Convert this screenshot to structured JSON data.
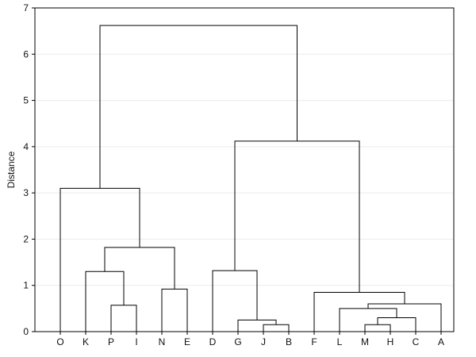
{
  "chart_data": {
    "type": "dendrogram",
    "ylabel": "Distance",
    "ylim": [
      0,
      7
    ],
    "yticks": [
      0,
      1,
      2,
      3,
      4,
      5,
      6,
      7
    ],
    "grid": true,
    "leaves": [
      "O",
      "K",
      "P",
      "I",
      "N",
      "E",
      "D",
      "G",
      "J",
      "B",
      "F",
      "L",
      "M",
      "H",
      "C",
      "A"
    ],
    "links": [
      {
        "left": [
          "leaf",
          12
        ],
        "right": [
          "leaf",
          13
        ],
        "height": 0.15
      },
      {
        "left": [
          "leaf",
          8
        ],
        "right": [
          "leaf",
          9
        ],
        "height": 0.15
      },
      {
        "left": [
          "link",
          0
        ],
        "right": [
          "leaf",
          14
        ],
        "height": 0.3
      },
      {
        "left": [
          "leaf",
          7
        ],
        "right": [
          "link",
          1
        ],
        "height": 0.25
      },
      {
        "left": [
          "leaf",
          11
        ],
        "right": [
          "link",
          2
        ],
        "height": 0.5
      },
      {
        "left": [
          "link",
          4
        ],
        "right": [
          "leaf",
          15
        ],
        "height": 0.6
      },
      {
        "left": [
          "leaf",
          2
        ],
        "right": [
          "leaf",
          3
        ],
        "height": 0.57
      },
      {
        "left": [
          "leaf",
          10
        ],
        "right": [
          "link",
          5
        ],
        "height": 0.85
      },
      {
        "left": [
          "leaf",
          4
        ],
        "right": [
          "leaf",
          5
        ],
        "height": 0.92
      },
      {
        "left": [
          "leaf",
          1
        ],
        "right": [
          "link",
          6
        ],
        "height": 1.3
      },
      {
        "left": [
          "leaf",
          6
        ],
        "right": [
          "link",
          3
        ],
        "height": 1.32
      },
      {
        "left": [
          "link",
          9
        ],
        "right": [
          "link",
          8
        ],
        "height": 1.82
      },
      {
        "left": [
          "leaf",
          0
        ],
        "right": [
          "link",
          11
        ],
        "height": 3.1
      },
      {
        "left": [
          "link",
          10
        ],
        "right": [
          "link",
          7
        ],
        "height": 4.12
      },
      {
        "left": [
          "link",
          12
        ],
        "right": [
          "link",
          13
        ],
        "height": 6.62
      }
    ]
  }
}
